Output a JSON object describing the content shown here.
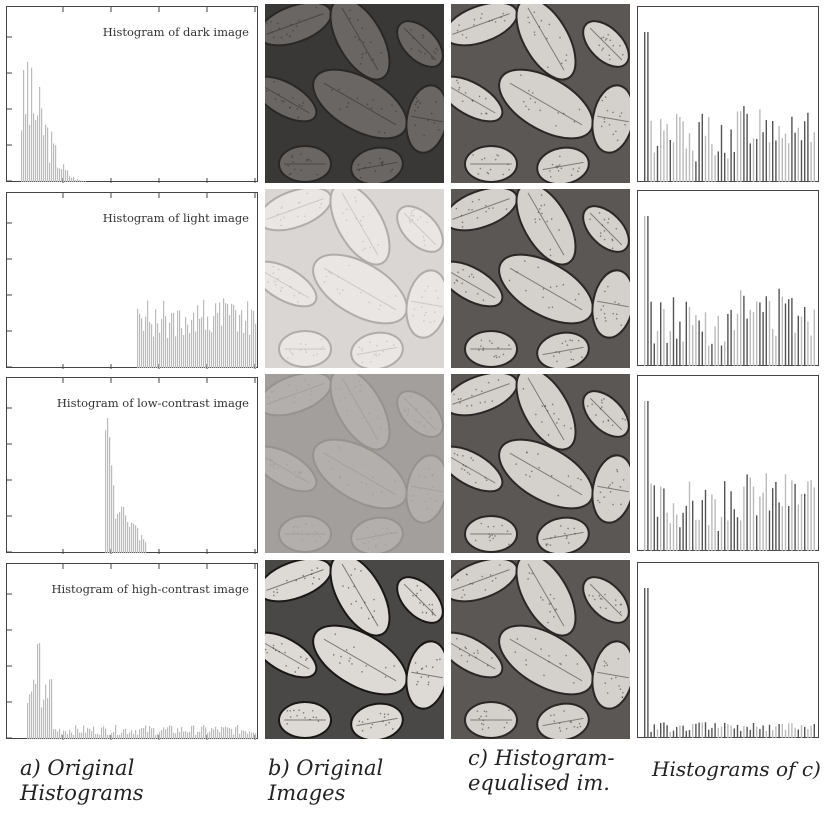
{
  "rows": [
    {
      "id": "dark",
      "title": "Histogram of dark image",
      "tone": "dark"
    },
    {
      "id": "light",
      "title": "Histogram of light image",
      "tone": "light"
    },
    {
      "id": "low",
      "title": "Histogram of low-contrast image",
      "tone": "low"
    },
    {
      "id": "high",
      "title": "Histogram of high-contrast image",
      "tone": "high"
    }
  ],
  "captions": {
    "a": [
      "a) Original",
      "Histograms"
    ],
    "b": [
      "b) Original",
      "Images"
    ],
    "c": [
      "c) Histogram-",
      "equalised im."
    ],
    "d": [
      "Histograms of c)"
    ]
  },
  "colors": {
    "axis": "#444444",
    "bar": "#bbbbbb",
    "bar_dark": "#555555"
  }
}
